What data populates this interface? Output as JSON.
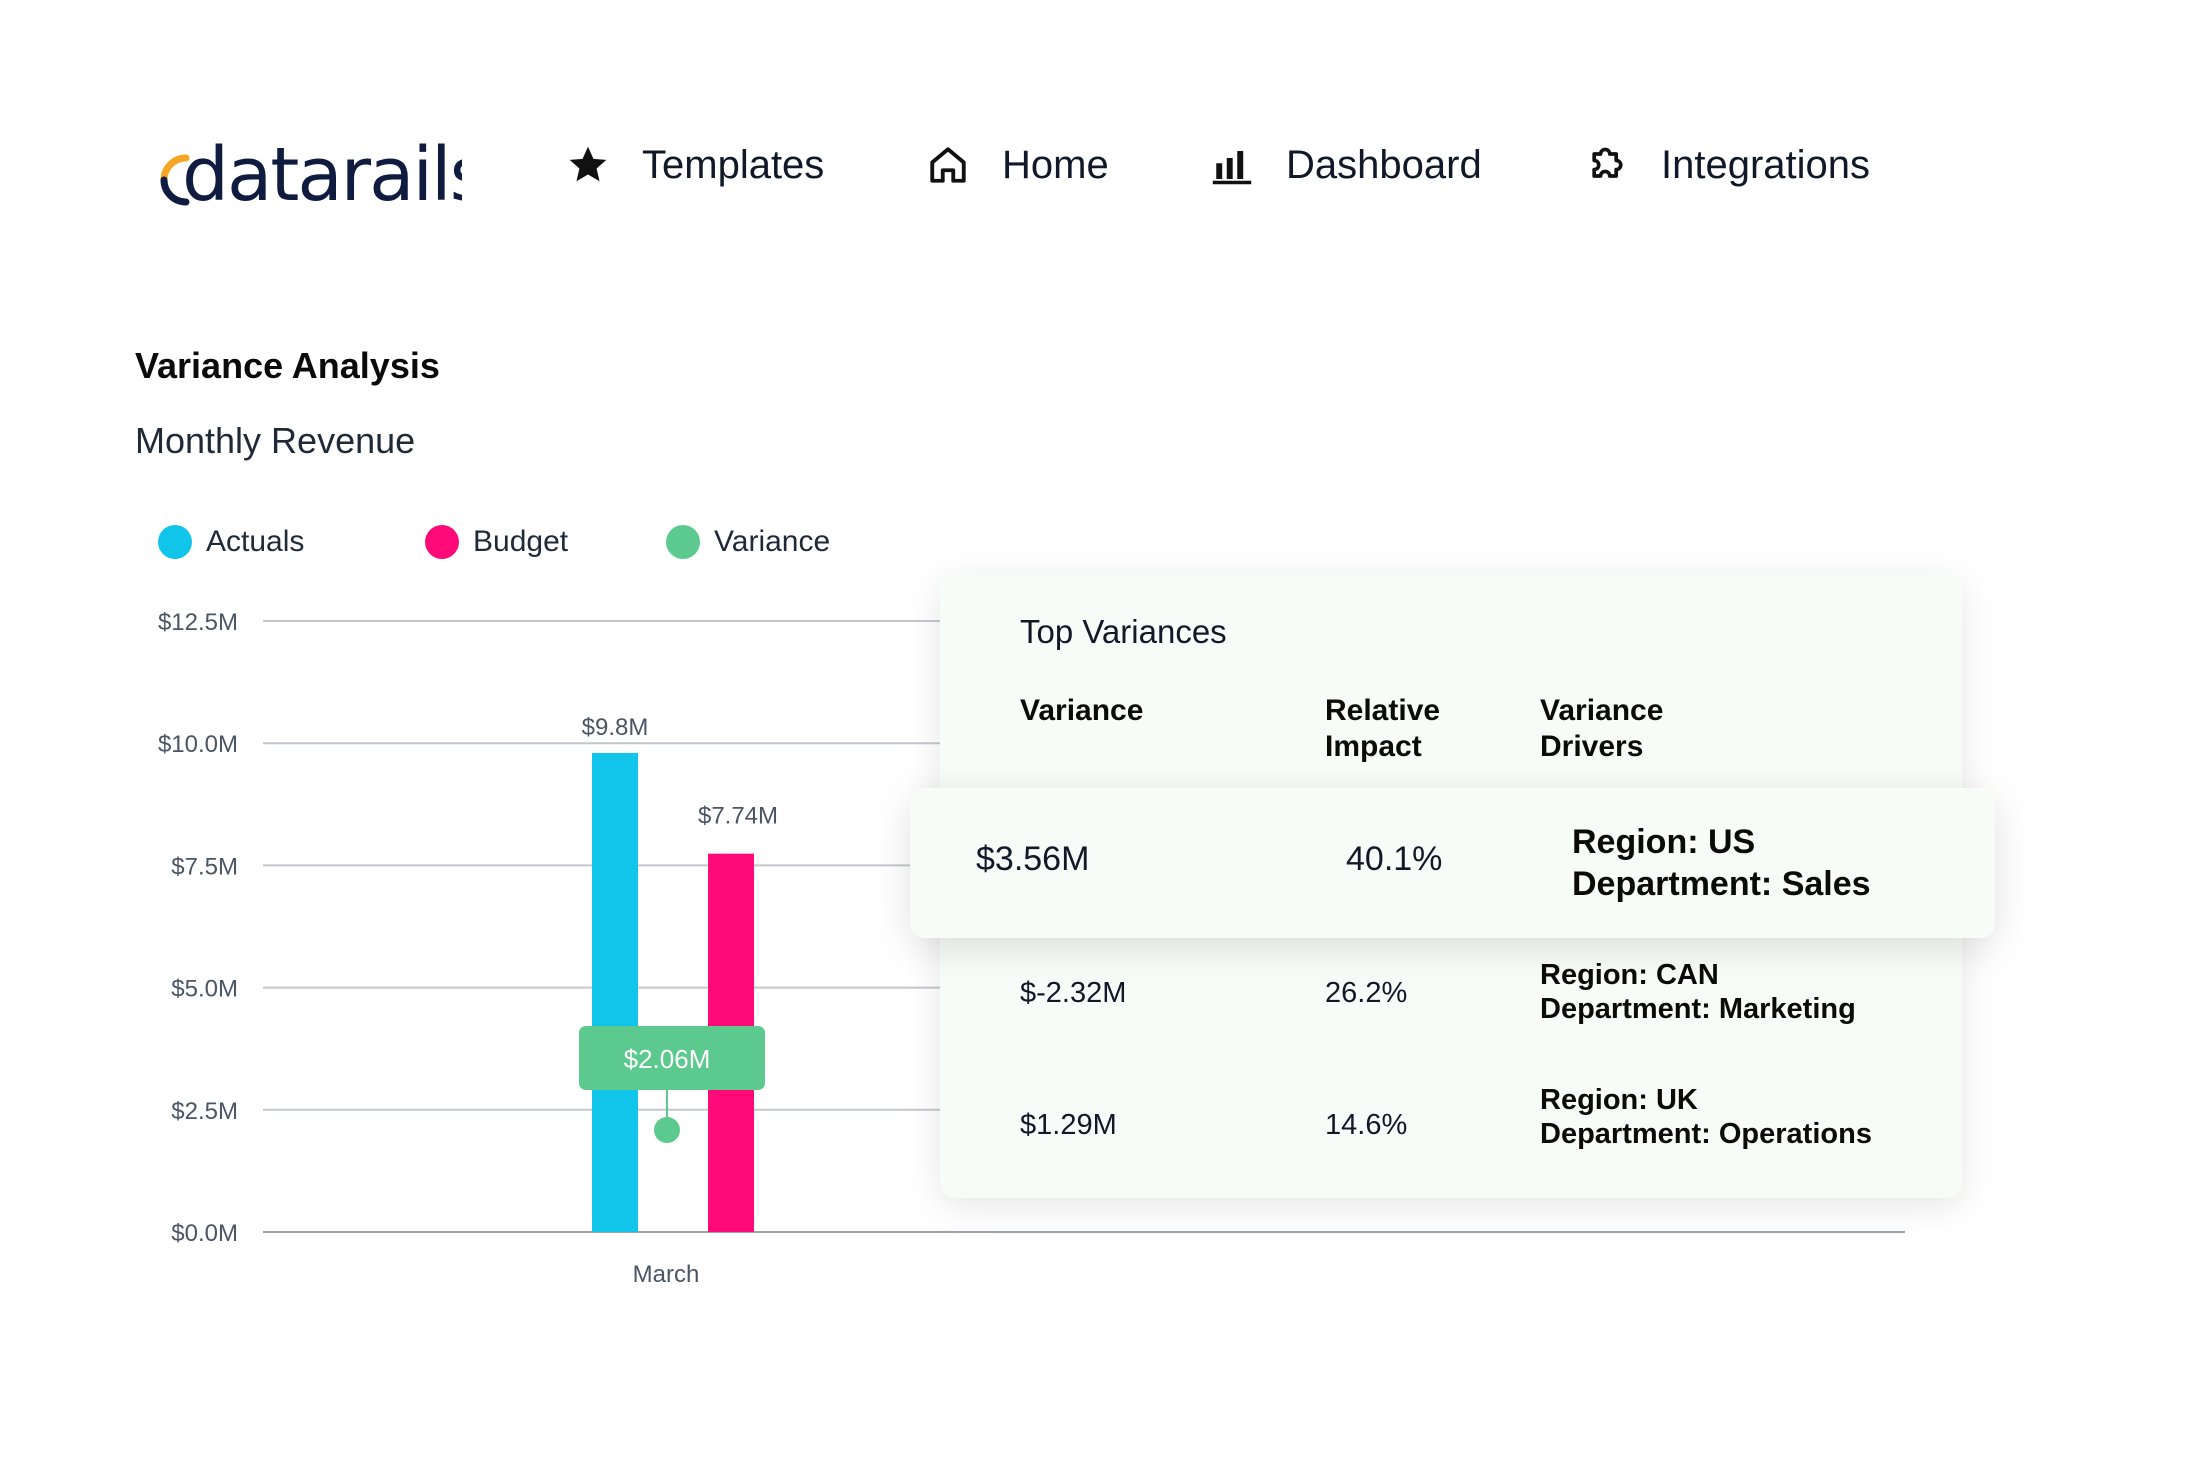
{
  "brand": {
    "logo_text": "datarails",
    "accent": "#f5a623",
    "ink": "#0f1c3f"
  },
  "nav": [
    {
      "label": "Templates",
      "icon": "star-icon"
    },
    {
      "label": "Home",
      "icon": "home-icon"
    },
    {
      "label": "Dashboard",
      "icon": "bar-chart-icon"
    },
    {
      "label": "Integrations",
      "icon": "puzzle-icon"
    }
  ],
  "page": {
    "title": "Variance Analysis",
    "subtitle": "Monthly Revenue"
  },
  "legend": [
    {
      "label": "Actuals",
      "color": "#11c5ea"
    },
    {
      "label": "Budget",
      "color": "#ff0a78"
    },
    {
      "label": "Variance",
      "color": "#5cc98f"
    }
  ],
  "chart_data": {
    "type": "bar",
    "categories": [
      "March"
    ],
    "series": [
      {
        "name": "Actuals",
        "values": [
          9.8
        ],
        "label": "$9.8M",
        "color": "#11c5ea"
      },
      {
        "name": "Budget",
        "values": [
          7.74
        ],
        "label": "$7.74M",
        "color": "#ff0a78"
      }
    ],
    "variance": {
      "value": 2.06,
      "label": "$2.06M",
      "color": "#5cc98f"
    },
    "y_ticks": [
      {
        "value": 0,
        "label": "$0.0M"
      },
      {
        "value": 2.5,
        "label": "$2.5M"
      },
      {
        "value": 5,
        "label": "$5.0M"
      },
      {
        "value": 7.5,
        "label": "$7.5M"
      },
      {
        "value": 10,
        "label": "$10.0M"
      },
      {
        "value": 12.5,
        "label": "$12.5M"
      }
    ],
    "ylim": [
      0,
      12.5
    ],
    "grid": true,
    "legend_position": "top-left"
  },
  "top_variances": {
    "title": "Top Variances",
    "columns": [
      "Variance",
      "Relative Impact",
      "Variance Drivers"
    ],
    "rows": [
      {
        "variance": "$3.56M",
        "impact": "40.1%",
        "region": "Region: US",
        "department": "Department: Sales",
        "highlighted": true
      },
      {
        "variance": "$-2.32M",
        "impact": "26.2%",
        "region": "Region: CAN",
        "department": "Department: Marketing"
      },
      {
        "variance": "$1.29M",
        "impact": "14.6%",
        "region": "Region: UK",
        "department": "Department: Operations"
      }
    ]
  }
}
